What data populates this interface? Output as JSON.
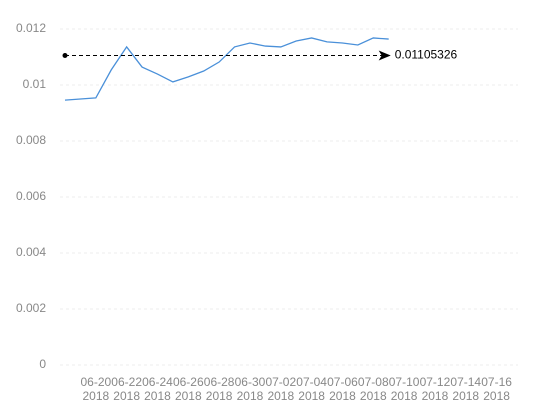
{
  "chart_data": {
    "type": "line",
    "x": [
      "2018-06-18",
      "2018-06-19",
      "2018-06-20",
      "2018-06-21",
      "2018-06-22",
      "2018-06-23",
      "2018-06-24",
      "2018-06-25",
      "2018-06-26",
      "2018-06-27",
      "2018-06-28",
      "2018-06-29",
      "2018-06-30",
      "2018-07-01",
      "2018-07-02",
      "2018-07-03",
      "2018-07-04",
      "2018-07-05",
      "2018-07-06",
      "2018-07-07",
      "2018-07-08",
      "2018-07-09"
    ],
    "series": [
      {
        "color": "#4a90d9",
        "values": [
          0.00946,
          0.0095,
          0.00954,
          0.01054,
          0.01136,
          0.01064,
          0.01039,
          0.01011,
          0.01029,
          0.0105,
          0.01082,
          0.01136,
          0.0115,
          0.01139,
          0.01136,
          0.01157,
          0.01168,
          0.01154,
          0.0115,
          0.01143,
          0.01168,
          0.01164
        ]
      }
    ],
    "xlim": [
      "2018-06-18",
      "2018-07-17"
    ],
    "xticks": [
      {
        "value": "2018-06-20",
        "label": [
          "06-20",
          "2018"
        ]
      },
      {
        "value": "2018-06-22",
        "label": [
          "06-22",
          "2018"
        ]
      },
      {
        "value": "2018-06-24",
        "label": [
          "06-24",
          "2018"
        ]
      },
      {
        "value": "2018-06-26",
        "label": [
          "06-26",
          "2018"
        ]
      },
      {
        "value": "2018-06-28",
        "label": [
          "06-28",
          "2018"
        ]
      },
      {
        "value": "2018-06-30",
        "label": [
          "06-30",
          "2018"
        ]
      },
      {
        "value": "2018-07-02",
        "label": [
          "07-02",
          "2018"
        ]
      },
      {
        "value": "2018-07-04",
        "label": [
          "07-04",
          "2018"
        ]
      },
      {
        "value": "2018-07-06",
        "label": [
          "07-06",
          "2018"
        ]
      },
      {
        "value": "2018-07-08",
        "label": [
          "07-08",
          "2018"
        ]
      },
      {
        "value": "2018-07-10",
        "label": [
          "07-10",
          "2018"
        ]
      },
      {
        "value": "2018-07-12",
        "label": [
          "07-12",
          "2018"
        ]
      },
      {
        "value": "2018-07-14",
        "label": [
          "07-14",
          "2018"
        ]
      },
      {
        "value": "2018-07-16",
        "label": [
          "07-16",
          "2018"
        ]
      }
    ],
    "ylim": [
      0,
      0.012
    ],
    "yticks": [
      0,
      0.002,
      0.004,
      0.006,
      0.008,
      0.01,
      0.012
    ],
    "grid": true,
    "mean_line": 0.01105326
  }
}
